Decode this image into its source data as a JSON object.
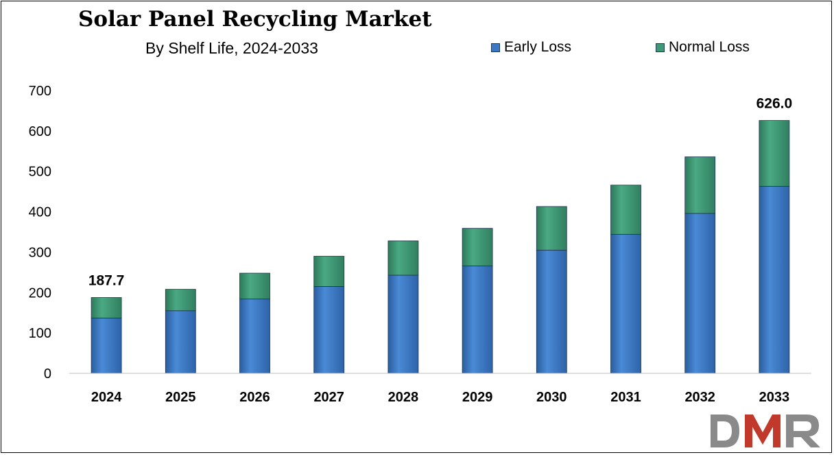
{
  "chart_data": {
    "type": "bar",
    "stacked": true,
    "title": "Solar Panel Recycling Market",
    "subtitle": "By Shelf Life, 2024-2033",
    "xlabel": "",
    "ylabel": "",
    "categories": [
      "2024",
      "2025",
      "2026",
      "2027",
      "2028",
      "2029",
      "2030",
      "2031",
      "2032",
      "2033"
    ],
    "series": [
      {
        "name": "Early Loss",
        "color": "#3a78c4",
        "values": [
          137,
          155,
          184,
          215,
          243,
          266,
          305,
          344,
          396,
          463
        ]
      },
      {
        "name": "Normal Loss",
        "color": "#3d9a74",
        "values": [
          50.7,
          53,
          64,
          75,
          85,
          93,
          108,
          122,
          140,
          163
        ]
      }
    ],
    "ylim": [
      0,
      700
    ],
    "yticks": [
      0,
      100,
      200,
      300,
      400,
      500,
      600,
      700
    ],
    "data_labels": [
      {
        "category": "2024",
        "text": "187.7"
      },
      {
        "category": "2033",
        "text": "626.0"
      }
    ],
    "grid": false,
    "legend_position": "top-right"
  },
  "logo": {
    "text": "DMR",
    "colors": [
      "#8a8a8a",
      "#c0392b"
    ]
  }
}
